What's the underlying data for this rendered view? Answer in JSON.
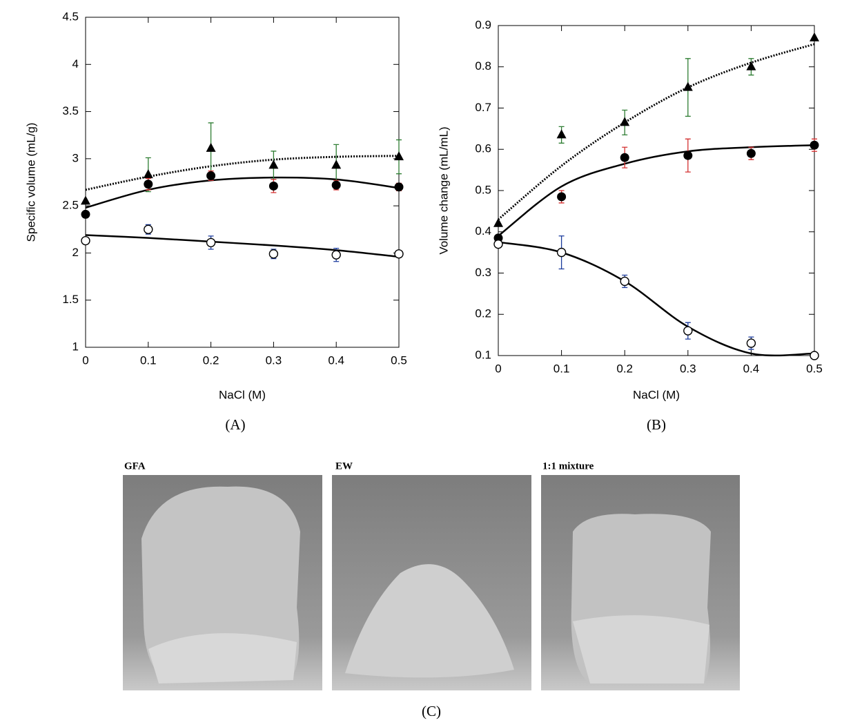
{
  "chart_data": [
    {
      "type": "scatter",
      "panel_label": "(A)",
      "x_label": "NaCl  (M)",
      "y_label": "Specific volume  (mL/g)",
      "x": [
        0,
        0.1,
        0.2,
        0.3,
        0.4,
        0.5
      ],
      "xlim": [
        0,
        0.5
      ],
      "xticks": [
        0,
        0.1,
        0.2,
        0.3,
        0.4,
        0.5
      ],
      "ylim": [
        1,
        4.5
      ],
      "yticks": [
        1,
        1.5,
        2,
        2.5,
        3,
        3.5,
        4,
        4.5
      ],
      "series": [
        {
          "marker": "triangle",
          "color": "#000000",
          "error_color": "#2e7d32",
          "values": [
            2.55,
            2.83,
            3.11,
            2.93,
            2.93,
            3.02
          ],
          "errors": [
            null,
            0.18,
            0.27,
            0.15,
            0.22,
            0.18
          ]
        },
        {
          "marker": "filled-circle",
          "color": "#000000",
          "error_color": "#d32f2f",
          "values": [
            2.41,
            2.73,
            2.82,
            2.71,
            2.72,
            2.7
          ],
          "errors": [
            null,
            0.06,
            0.05,
            0.07,
            0.05,
            0.04
          ]
        },
        {
          "marker": "open-circle",
          "color": "#000000",
          "error_color": "#1a3a9c",
          "values": [
            2.13,
            2.25,
            2.11,
            1.99,
            1.98,
            1.99
          ],
          "errors": [
            null,
            0.05,
            0.07,
            0.05,
            0.07,
            null
          ]
        }
      ],
      "fits": [
        {
          "style": "dotted",
          "values": [
            2.67,
            2.81,
            2.92,
            2.99,
            3.02,
            3.03
          ]
        },
        {
          "style": "solid",
          "values": [
            2.48,
            2.67,
            2.77,
            2.8,
            2.78,
            2.69
          ]
        },
        {
          "style": "solid",
          "values": [
            2.19,
            2.16,
            2.12,
            2.08,
            2.03,
            1.96
          ]
        }
      ]
    },
    {
      "type": "scatter",
      "panel_label": "(B)",
      "x_label": "NaCl   (M)",
      "y_label": "Volume change   (mL/mL)",
      "x": [
        0,
        0.1,
        0.2,
        0.3,
        0.4,
        0.5
      ],
      "xlim": [
        0,
        0.5
      ],
      "xticks": [
        0,
        0.1,
        0.2,
        0.3,
        0.4,
        0.5
      ],
      "ylim": [
        0.1,
        0.9
      ],
      "yticks": [
        0.1,
        0.2,
        0.3,
        0.4,
        0.5,
        0.6,
        0.7,
        0.8,
        0.9
      ],
      "series": [
        {
          "marker": "triangle",
          "color": "#000000",
          "error_color": "#2e7d32",
          "values": [
            0.42,
            0.635,
            0.665,
            0.75,
            0.8,
            0.87
          ],
          "errors": [
            null,
            0.02,
            0.03,
            0.07,
            0.02,
            null
          ]
        },
        {
          "marker": "filled-circle",
          "color": "#000000",
          "error_color": "#d32f2f",
          "values": [
            0.385,
            0.485,
            0.58,
            0.585,
            0.59,
            0.61
          ],
          "errors": [
            null,
            0.015,
            0.025,
            0.04,
            0.015,
            0.015
          ]
        },
        {
          "marker": "open-circle",
          "color": "#000000",
          "error_color": "#1a3a9c",
          "values": [
            0.37,
            0.35,
            0.28,
            0.16,
            0.13,
            0.1
          ],
          "errors": [
            null,
            0.04,
            0.015,
            0.02,
            0.015,
            null
          ]
        }
      ],
      "fits": [
        {
          "style": "dotted",
          "values": [
            0.43,
            0.56,
            0.665,
            0.75,
            0.81,
            0.855
          ]
        },
        {
          "style": "solid",
          "values": [
            0.39,
            0.51,
            0.565,
            0.595,
            0.605,
            0.61
          ]
        },
        {
          "style": "solid",
          "values": [
            0.375,
            0.35,
            0.28,
            0.17,
            0.105,
            0.105
          ]
        }
      ]
    }
  ],
  "photos": {
    "labels": [
      "GFA",
      "EW",
      "1:1 mixture"
    ],
    "panel_label": "(C)"
  }
}
